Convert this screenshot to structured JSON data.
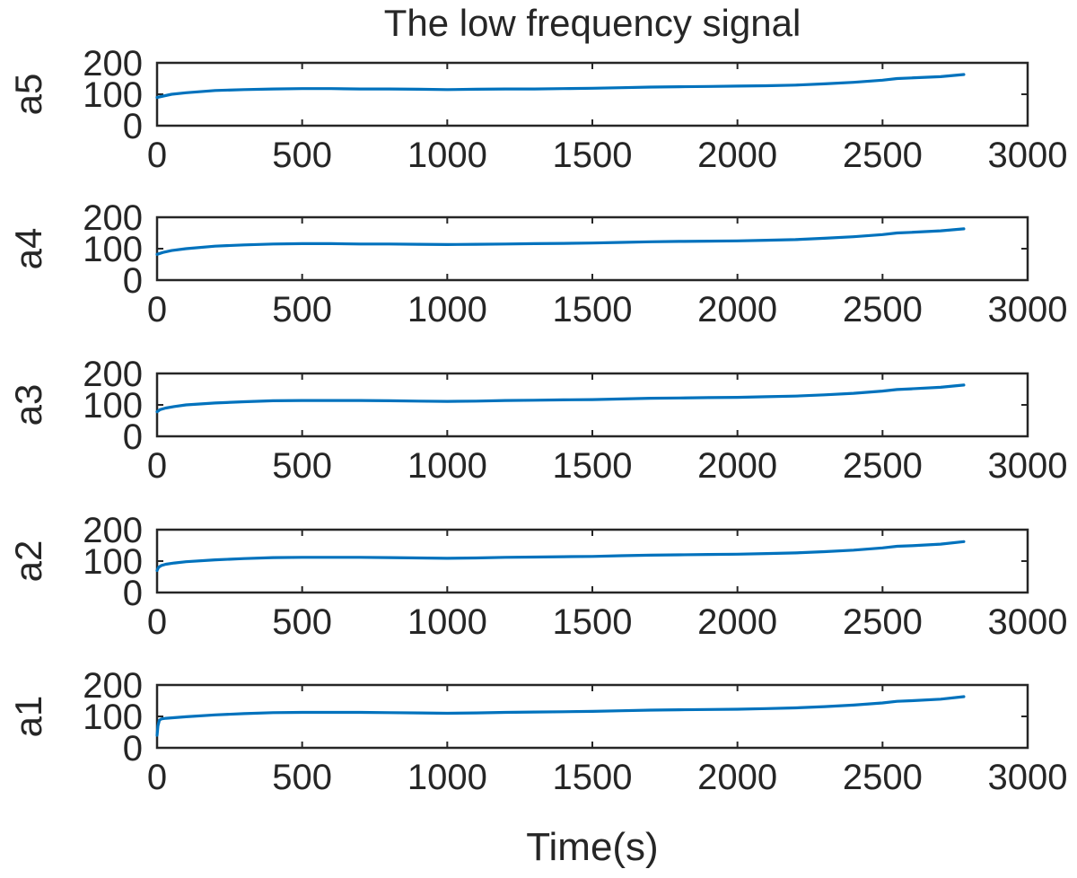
{
  "chart_data": {
    "type": "line",
    "title": "The low frequency signal",
    "xlabel": "Time(s)",
    "line_color": "#0072BD",
    "panels": [
      {
        "ylabel": "a5",
        "xlim": [
          0,
          3000
        ],
        "ylim": [
          0,
          200
        ],
        "xticks": [
          "0",
          "500",
          "1000",
          "1500",
          "2000",
          "2500",
          "3000"
        ],
        "yticks": [
          "0",
          "100",
          "200"
        ],
        "series": [
          {
            "x": [
              0,
              50,
              100,
              200,
              300,
              400,
              500,
              600,
              700,
              800,
              900,
              1000,
              1100,
              1200,
              1300,
              1400,
              1500,
              1600,
              1700,
              1800,
              1900,
              2000,
              2100,
              2200,
              2300,
              2400,
              2500,
              2550,
              2600,
              2700,
              2780
            ],
            "y": [
              90,
              100,
              105,
              112,
              115,
              117,
              118,
              118,
              117,
              117,
              116,
              115,
              116,
              117,
              117,
              118,
              119,
              121,
              123,
              124,
              125,
              126,
              127,
              129,
              133,
              138,
              145,
              150,
              152,
              156,
              163
            ]
          }
        ]
      },
      {
        "ylabel": "a4",
        "xlim": [
          0,
          3000
        ],
        "ylim": [
          0,
          200
        ],
        "xticks": [
          "0",
          "500",
          "1000",
          "1500",
          "2000",
          "2500",
          "3000"
        ],
        "yticks": [
          "0",
          "100",
          "200"
        ],
        "series": [
          {
            "x": [
              0,
              20,
              50,
              100,
              200,
              300,
              400,
              500,
              600,
              700,
              800,
              900,
              1000,
              1100,
              1200,
              1300,
              1400,
              1500,
              1600,
              1700,
              1800,
              1900,
              2000,
              2100,
              2200,
              2300,
              2400,
              2500,
              2550,
              2600,
              2700,
              2780
            ],
            "y": [
              82,
              88,
              94,
              100,
              108,
              112,
              115,
              116,
              116,
              115,
              115,
              114,
              113,
              114,
              115,
              116,
              117,
              118,
              120,
              122,
              123,
              124,
              125,
              127,
              129,
              133,
              138,
              145,
              150,
              152,
              157,
              163
            ]
          }
        ]
      },
      {
        "ylabel": "a3",
        "xlim": [
          0,
          3000
        ],
        "ylim": [
          0,
          200
        ],
        "xticks": [
          "0",
          "500",
          "1000",
          "1500",
          "2000",
          "2500",
          "3000"
        ],
        "yticks": [
          "0",
          "100",
          "200"
        ],
        "series": [
          {
            "x": [
              0,
              10,
              30,
              60,
              100,
              200,
              300,
              400,
              500,
              600,
              700,
              800,
              900,
              1000,
              1100,
              1200,
              1300,
              1400,
              1500,
              1600,
              1700,
              1800,
              1900,
              2000,
              2100,
              2200,
              2300,
              2400,
              2500,
              2550,
              2600,
              2700,
              2780
            ],
            "y": [
              78,
              85,
              90,
              95,
              100,
              106,
              110,
              113,
              114,
              114,
              114,
              113,
              112,
              111,
              112,
              114,
              115,
              116,
              117,
              119,
              121,
              122,
              123,
              124,
              126,
              128,
              132,
              137,
              144,
              149,
              151,
              156,
              163
            ]
          }
        ]
      },
      {
        "ylabel": "a2",
        "xlim": [
          0,
          3000
        ],
        "ylim": [
          0,
          200
        ],
        "xticks": [
          "0",
          "500",
          "1000",
          "1500",
          "2000",
          "2500",
          "3000"
        ],
        "yticks": [
          "0",
          "100",
          "200"
        ],
        "series": [
          {
            "x": [
              0,
              5,
              15,
              30,
              60,
              100,
              200,
              300,
              400,
              500,
              600,
              700,
              800,
              900,
              1000,
              1100,
              1200,
              1300,
              1400,
              1500,
              1600,
              1700,
              1800,
              1900,
              2000,
              2100,
              2200,
              2300,
              2400,
              2500,
              2550,
              2600,
              2700,
              2780
            ],
            "y": [
              70,
              80,
              86,
              90,
              94,
              98,
              104,
              108,
              111,
              112,
              112,
              112,
              111,
              110,
              109,
              110,
              112,
              113,
              114,
              115,
              117,
              119,
              120,
              121,
              122,
              124,
              126,
              130,
              135,
              142,
              147,
              149,
              154,
              162
            ]
          }
        ]
      },
      {
        "ylabel": "a1",
        "xlim": [
          0,
          3000
        ],
        "ylim": [
          0,
          200
        ],
        "xticks": [
          "0",
          "500",
          "1000",
          "1500",
          "2000",
          "2500",
          "3000"
        ],
        "yticks": [
          "0",
          "100",
          "200"
        ],
        "series": [
          {
            "x": [
              0,
              3,
              8,
              15,
              30,
              60,
              100,
              200,
              300,
              400,
              500,
              600,
              700,
              800,
              900,
              1000,
              1100,
              1200,
              1300,
              1400,
              1500,
              1600,
              1700,
              1800,
              1900,
              2000,
              2100,
              2200,
              2300,
              2400,
              2500,
              2550,
              2600,
              2700,
              2780
            ],
            "y": [
              40,
              70,
              88,
              92,
              94,
              96,
              99,
              105,
              109,
              112,
              113,
              113,
              113,
              112,
              111,
              110,
              111,
              113,
              114,
              115,
              116,
              118,
              120,
              121,
              122,
              123,
              125,
              127,
              131,
              136,
              143,
              148,
              150,
              155,
              163
            ]
          }
        ]
      }
    ]
  }
}
